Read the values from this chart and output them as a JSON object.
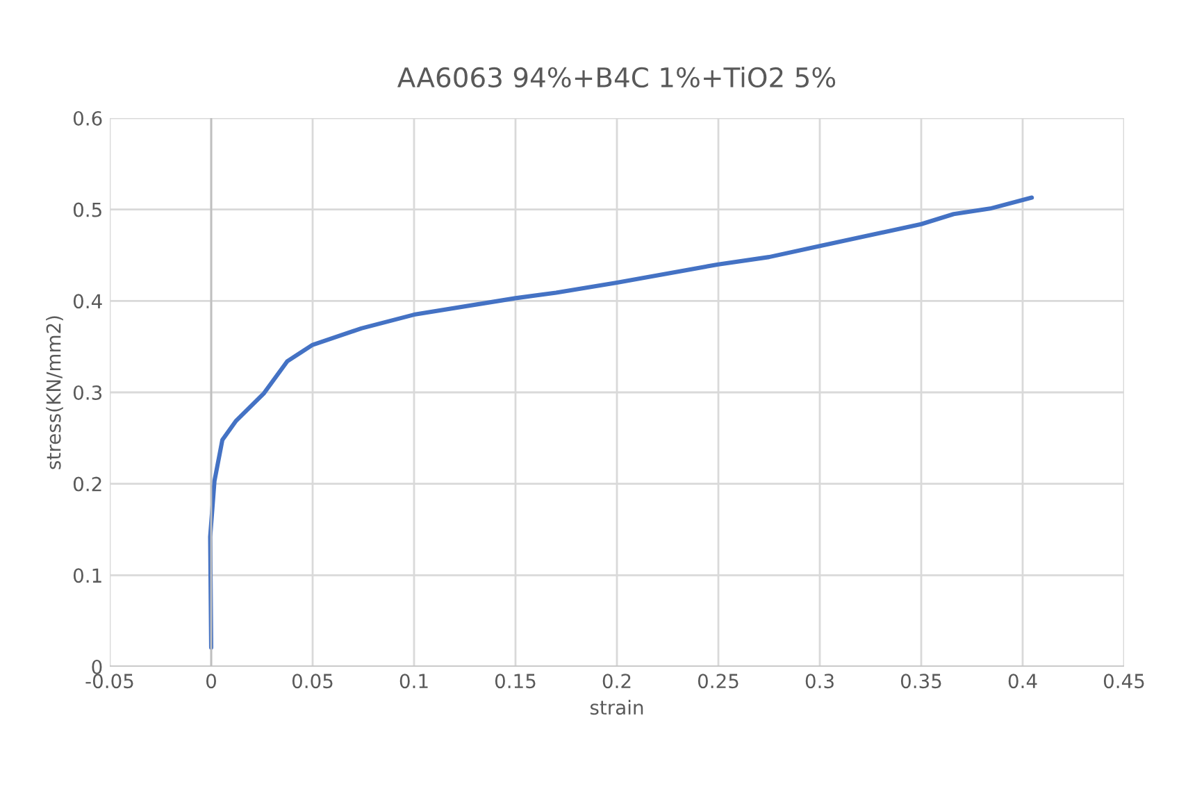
{
  "chart_data": {
    "type": "line",
    "title": "AA6063 94%+B4C 1%+TiO2 5%",
    "xlabel": "strain",
    "ylabel": "stress(KN/mm2)",
    "series": [
      {
        "color": "#4472c4",
        "x": [
          0.0,
          -0.0005,
          0.0016,
          0.0055,
          0.0123,
          0.026,
          0.0375,
          0.05,
          0.074,
          0.1,
          0.15,
          0.17,
          0.2,
          0.25,
          0.275,
          0.3,
          0.35,
          0.366,
          0.384,
          0.4045
        ],
        "values": [
          0.021,
          0.142,
          0.203,
          0.248,
          0.269,
          0.299,
          0.334,
          0.352,
          0.37,
          0.385,
          0.403,
          0.409,
          0.42,
          0.44,
          0.448,
          0.46,
          0.484,
          0.495,
          0.501,
          0.513
        ]
      }
    ],
    "xlim": [
      -0.05,
      0.45
    ],
    "xticks": [
      {
        "value": -0.05,
        "label": "-0.05"
      },
      0,
      0.05,
      0.1,
      0.15,
      0.2,
      0.25,
      0.3,
      0.35,
      0.4,
      0.45
    ],
    "ylim": [
      0,
      0.6
    ],
    "yticks": [
      0,
      0.1,
      0.2,
      0.3,
      0.4,
      0.5,
      0.6
    ],
    "grid": true,
    "legend": false,
    "marker": "none",
    "line_style": "solid"
  }
}
